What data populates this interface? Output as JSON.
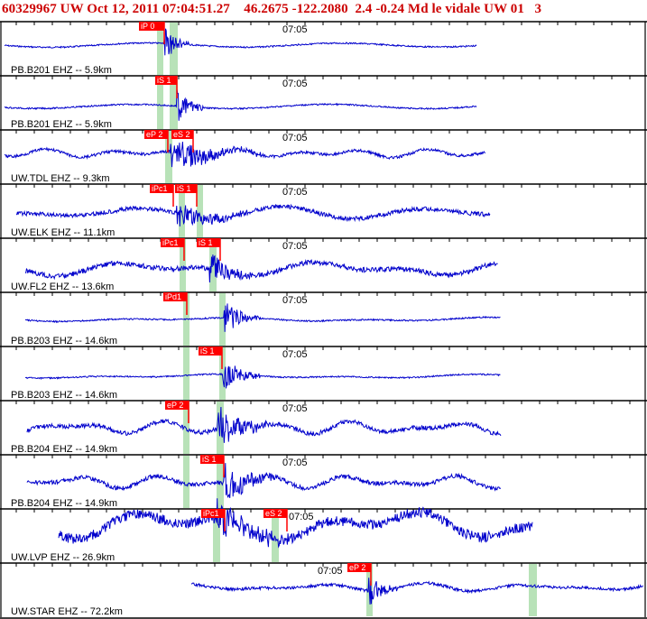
{
  "header": {
    "title": "60329967 UW Oct 12, 2011 07:04:51.27    46.2675 -122.2080  2.4 -0.24 Md le vidale UW 01   3"
  },
  "colors": {
    "trace": "#0000cc",
    "pick": "#ff0000",
    "pick_text": "#ffffff",
    "window": "#b8e2b8",
    "frame": "#000000",
    "label": "#000000"
  },
  "panels": [
    {
      "station": "PB.B201 EHZ -- 5.9km",
      "time_label": "07:05",
      "picks": [
        "iP 0"
      ]
    },
    {
      "station": "PB.B201 EHZ -- 5.9km",
      "time_label": "07:05",
      "picks": [
        "iS 1"
      ]
    },
    {
      "station": "UW.TDL EHZ -- 9.3km",
      "time_label": "07:05",
      "picks": [
        "eP 2",
        "eS 2"
      ]
    },
    {
      "station": "UW.ELK EHZ -- 11.1km",
      "time_label": "07:05",
      "picks": [
        "iPc1",
        "iS 1"
      ]
    },
    {
      "station": "UW.FL2 EHZ -- 13.6km",
      "time_label": "07:05",
      "picks": [
        "iPc1",
        "iS 1"
      ]
    },
    {
      "station": "PB.B203 EHZ -- 14.6km",
      "time_label": "07:05",
      "picks": [
        "iPd1"
      ]
    },
    {
      "station": "PB.B203 EHZ -- 14.6km",
      "time_label": "07:05",
      "picks": [
        "iS 1"
      ]
    },
    {
      "station": "PB.B204 EHZ -- 14.9km",
      "time_label": "07:05",
      "picks": [
        "eP 2"
      ]
    },
    {
      "station": "PB.B204 EHZ -- 14.9km",
      "time_label": "07:05",
      "picks": [
        "iS 1"
      ]
    },
    {
      "station": "UW.LVP EHZ -- 26.9km",
      "time_label": "07:05",
      "picks": [
        "iPc1",
        "eS 2"
      ]
    },
    {
      "station": "UW.STAR EHZ -- 72.2km",
      "time_label": "07:05",
      "picks": [
        "eP 2"
      ]
    }
  ]
}
